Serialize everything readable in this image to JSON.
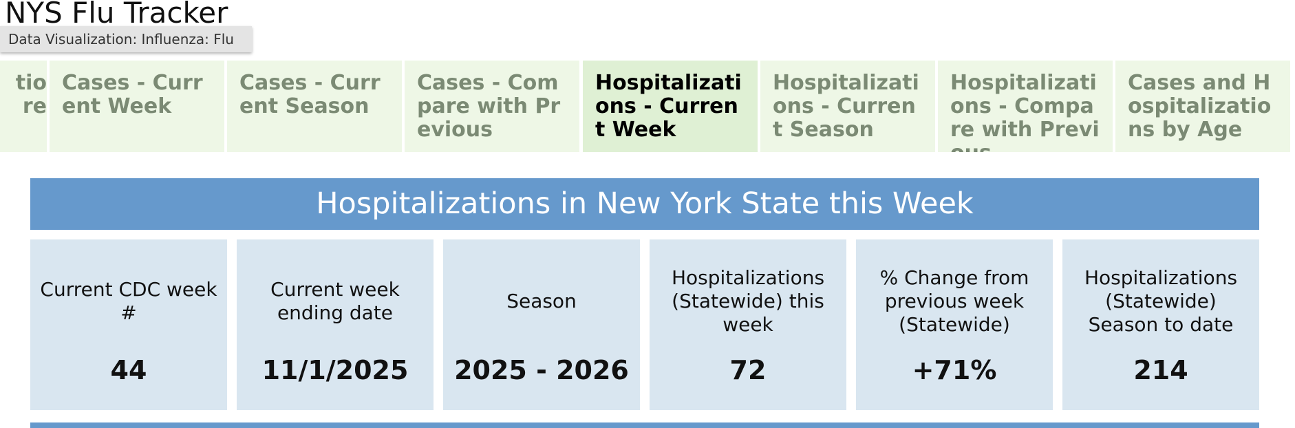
{
  "header": {
    "title": "NYS Flu Tracker",
    "tooltip": "Data Visualization: Influenza: Flu"
  },
  "tabs": [
    {
      "label": "tio\nre",
      "active": false
    },
    {
      "label": "Cases - Current Week",
      "active": false
    },
    {
      "label": "Cases - Current Season",
      "active": false
    },
    {
      "label": "Cases - Compare with Previous",
      "active": false
    },
    {
      "label": "Hospitalizations - Current Week",
      "active": true
    },
    {
      "label": "Hospitalizations - Current Season",
      "active": false
    },
    {
      "label": "Hospitalizations - Compare with Previous",
      "active": false
    },
    {
      "label": "Cases and Hospitalizations by Age",
      "active": false
    }
  ],
  "banner": "Hospitalizations in New York State this Week",
  "cards": [
    {
      "label": "Current CDC week #",
      "value": "44"
    },
    {
      "label": "Current week ending date",
      "value": "11/1/2025"
    },
    {
      "label": "Season",
      "value": "2025 - 2026"
    },
    {
      "label": "Hospitalizations (Statewide) this week",
      "value": "72"
    },
    {
      "label": "% Change from previous week (Statewide)",
      "value": "+71%"
    },
    {
      "label": "Hospitalizations (Statewide) Season to date",
      "value": "214"
    }
  ]
}
